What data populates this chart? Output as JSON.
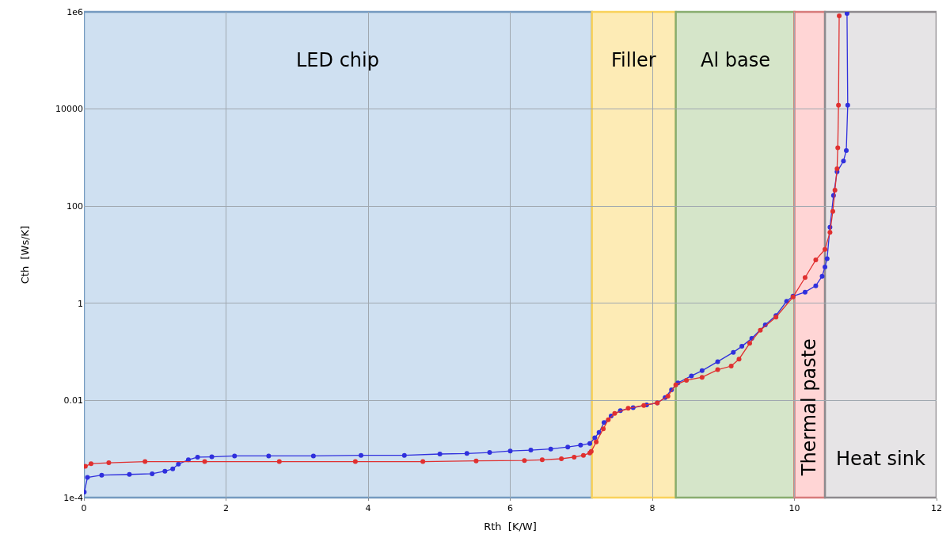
{
  "chart_data": {
    "type": "line",
    "xlabel": "Rth  [K/W]",
    "ylabel": "Cth  [Ws/K]",
    "log": "y",
    "xlim": [
      0,
      12
    ],
    "xticks": [
      0,
      2,
      4,
      6,
      8,
      10,
      12
    ],
    "ylim": [
      0.0001,
      1000000
    ],
    "yticks": [
      {
        "value": 0.0001,
        "label": "1e-4"
      },
      0.01,
      1,
      100,
      10000,
      {
        "value": 1000000,
        "label": "1e6"
      }
    ],
    "grid": true,
    "marker": "circle",
    "line_style": "solid",
    "bands": [
      {
        "axis": "x",
        "from": 0,
        "to": 7.15,
        "label": "LED chip",
        "color": "#cfe0f1"
      },
      {
        "axis": "x",
        "from": 7.15,
        "to": 8.33,
        "label": "Filler",
        "color": "#fdebb5"
      },
      {
        "axis": "x",
        "from": 8.33,
        "to": 10.0,
        "label": "Al base",
        "color": "#d5e5c9"
      },
      {
        "axis": "x",
        "from": 10.0,
        "to": 10.43,
        "label": "Thermal paste",
        "color": "#ffd5d5"
      },
      {
        "axis": "x",
        "from": 10.43,
        "to": 12,
        "label": "Heat sink",
        "color": "#e6e4e6"
      }
    ],
    "series": [
      {
        "color": "#3030dd",
        "x": [
          0.005,
          0.05,
          0.25,
          0.64,
          0.96,
          1.14,
          1.25,
          1.33,
          1.47,
          1.6,
          1.8,
          2.12,
          2.6,
          3.23,
          3.9,
          4.51,
          5.01,
          5.39,
          5.71,
          6.0,
          6.29,
          6.57,
          6.81,
          6.99,
          7.12,
          7.19,
          7.25,
          7.32,
          7.42,
          7.55,
          7.73,
          7.92,
          8.07,
          8.18,
          8.27,
          8.36,
          8.55,
          8.7,
          8.92,
          9.14,
          9.26,
          9.4,
          9.59,
          9.74,
          9.89,
          9.98,
          10.15,
          10.3,
          10.39,
          10.43,
          10.46,
          10.5,
          10.55,
          10.6,
          10.69,
          10.73,
          10.75,
          10.74
        ],
        "values": [
          0.00013,
          0.00026,
          0.00029,
          0.0003,
          0.00031,
          0.00035,
          0.00039,
          0.00049,
          0.0006,
          0.00068,
          0.00069,
          0.00072,
          0.00072,
          0.00072,
          0.00074,
          0.00074,
          0.00079,
          0.00081,
          0.00085,
          0.00091,
          0.00095,
          0.001,
          0.0011,
          0.0012,
          0.0013,
          0.0017,
          0.0022,
          0.0035,
          0.0048,
          0.0062,
          0.0071,
          0.0081,
          0.0089,
          0.0115,
          0.0166,
          0.023,
          0.032,
          0.041,
          0.063,
          0.098,
          0.13,
          0.19,
          0.36,
          0.56,
          1.1,
          1.4,
          1.7,
          2.3,
          3.6,
          5.6,
          8.3,
          37,
          166,
          510,
          850,
          1400,
          12000,
          930000
        ]
      },
      {
        "color": "#e03030",
        "x": [
          0.02,
          0.1,
          0.35,
          0.86,
          1.7,
          2.75,
          3.82,
          4.77,
          5.52,
          6.2,
          6.45,
          6.72,
          6.9,
          7.03,
          7.12,
          7.14,
          7.21,
          7.31,
          7.38,
          7.47,
          7.66,
          7.88,
          8.07,
          8.22,
          8.33,
          8.48,
          8.7,
          8.92,
          9.11,
          9.22,
          9.37,
          9.52,
          9.74,
          9.98,
          10.15,
          10.3,
          10.43,
          10.5,
          10.54,
          10.57,
          10.6,
          10.61,
          10.62,
          10.63
        ],
        "values": [
          0.00044,
          0.0005,
          0.00052,
          0.00055,
          0.00055,
          0.00055,
          0.00055,
          0.00055,
          0.00057,
          0.00058,
          0.0006,
          0.00063,
          0.00068,
          0.00074,
          0.00083,
          0.00089,
          0.0014,
          0.0026,
          0.004,
          0.0054,
          0.0069,
          0.0079,
          0.0089,
          0.0123,
          0.021,
          0.026,
          0.03,
          0.043,
          0.051,
          0.071,
          0.15,
          0.28,
          0.52,
          1.35,
          3.4,
          7.8,
          12.9,
          29,
          78,
          214,
          590,
          1600,
          12000,
          830000
        ]
      }
    ]
  }
}
